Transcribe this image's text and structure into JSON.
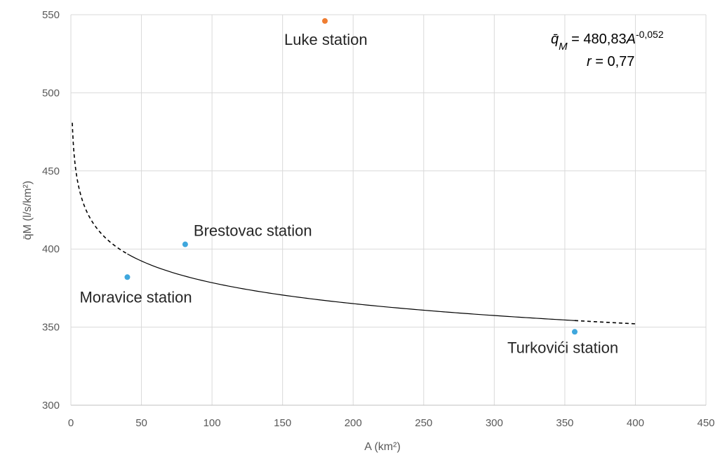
{
  "chart_data": {
    "type": "scatter",
    "xlabel": "A (km²)",
    "ylabel": "q̄M (l/s/km²)",
    "xlim": [
      0,
      450
    ],
    "ylim": [
      300,
      550
    ],
    "xticks": [
      0,
      50,
      100,
      150,
      200,
      250,
      300,
      350,
      400,
      450
    ],
    "yticks": [
      300,
      350,
      400,
      450,
      500,
      550
    ],
    "grid": true,
    "colors": {
      "fitted_points": "#3fa7dd",
      "outlier_point": "#ef7d31",
      "curve": "#000000"
    },
    "points": [
      {
        "name": "Moravice station",
        "x": 40,
        "y": 382,
        "color": "#3fa7dd"
      },
      {
        "name": "Brestovac station",
        "x": 81,
        "y": 403,
        "color": "#3fa7dd"
      },
      {
        "name": "Luke station",
        "x": 180,
        "y": 546,
        "color": "#ef7d31"
      },
      {
        "name": "Turkovići station",
        "x": 357,
        "y": 347,
        "color": "#3fa7dd"
      }
    ],
    "fit": {
      "coefficient": 480.83,
      "exponent": -0.052,
      "solid_range": [
        40,
        357
      ],
      "dashed_ranges": [
        [
          1,
          40
        ],
        [
          357,
          400
        ]
      ]
    },
    "annotation": {
      "equation_lhs": "q̄",
      "equation_sub": "M",
      "equation_mid": " = 480,83",
      "equation_var": "A",
      "equation_exp": "-0,052",
      "r_var": "r",
      "r_text": " = 0,77"
    }
  }
}
